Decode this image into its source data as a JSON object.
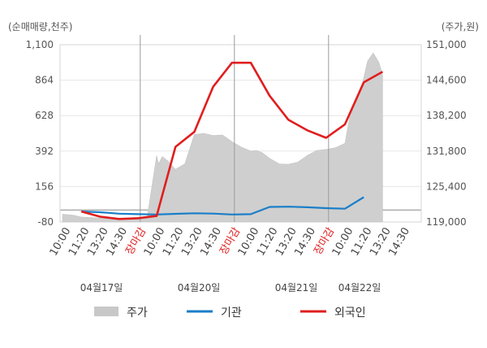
{
  "chart_data": {
    "type": "line",
    "left_axis_unit": "(순매매량,천주)",
    "right_axis_unit": "(주가,원)",
    "left_ticks": [
      "1,100",
      "864",
      "628",
      "392",
      "156",
      "-80"
    ],
    "left_range": [
      -80,
      1100
    ],
    "right_ticks": [
      "151,000",
      "144,600",
      "138,200",
      "131,800",
      "125,400",
      "119,000"
    ],
    "right_range": [
      119000,
      151000
    ],
    "x_ticks": [
      "10:00",
      "11:20",
      "13:20",
      "14:30",
      "장마감",
      "10:00",
      "11:20",
      "13:20",
      "14:30",
      "장마감",
      "10:00",
      "11:20",
      "13:20",
      "14:30",
      "장마감",
      "10:00",
      "11:20",
      "13:20",
      "14:30"
    ],
    "close_label": "장마감",
    "dates": [
      "04월17일",
      "04월20일",
      "04월21일",
      "04월22일"
    ],
    "legend": [
      {
        "label": "주가",
        "color": "#c8c8c8"
      },
      {
        "label": "기관",
        "color": "#1a7ec8"
      },
      {
        "label": "외국인",
        "color": "#e01e1e"
      }
    ],
    "series": [
      {
        "name": "기관",
        "color": "#1a7ec8",
        "x": [
          1,
          2,
          3,
          4,
          5,
          6,
          7,
          8,
          9,
          10,
          11,
          12,
          13,
          14,
          15,
          16
        ],
        "values": [
          -10,
          -15,
          -25,
          -28,
          -30,
          -26,
          -22,
          -24,
          -30,
          -28,
          20,
          22,
          18,
          12,
          8,
          85
        ]
      },
      {
        "name": "외국인",
        "color": "#e01e1e",
        "x": [
          1,
          2,
          3,
          4,
          5,
          6,
          7,
          8,
          9,
          10,
          11,
          12,
          13,
          14,
          15,
          16,
          17
        ],
        "values": [
          -10,
          -45,
          -60,
          -55,
          -40,
          420,
          520,
          820,
          980,
          980,
          760,
          600,
          530,
          480,
          570,
          850,
          920
        ]
      },
      {
        "name": "주가",
        "color": "#c8c8c8",
        "x": [
          0,
          0.3,
          0.6,
          1,
          1.5,
          2,
          2.5,
          3,
          3.5,
          4,
          4.5,
          5,
          5.1,
          5.3,
          5.6,
          6,
          6.5,
          7,
          7.5,
          8,
          8.5,
          9,
          9.5,
          10,
          10.3,
          10.6,
          11,
          11.5,
          12,
          12.5,
          13,
          13.5,
          14,
          14.5,
          15,
          15.3,
          15.6,
          15.9,
          16.2,
          16.5,
          16.8,
          17
        ],
        "values": [
          120400,
          120300,
          120200,
          119900,
          119800,
          119700,
          119600,
          119600,
          119700,
          119800,
          119900,
          131000,
          129500,
          130800,
          130000,
          128500,
          129500,
          134800,
          135000,
          134600,
          134700,
          133500,
          132500,
          131800,
          131900,
          131500,
          130500,
          129500,
          129400,
          129800,
          131000,
          131900,
          132100,
          132400,
          133200,
          139000,
          141000,
          143600,
          148000,
          149500,
          147800,
          145500
        ]
      }
    ]
  }
}
